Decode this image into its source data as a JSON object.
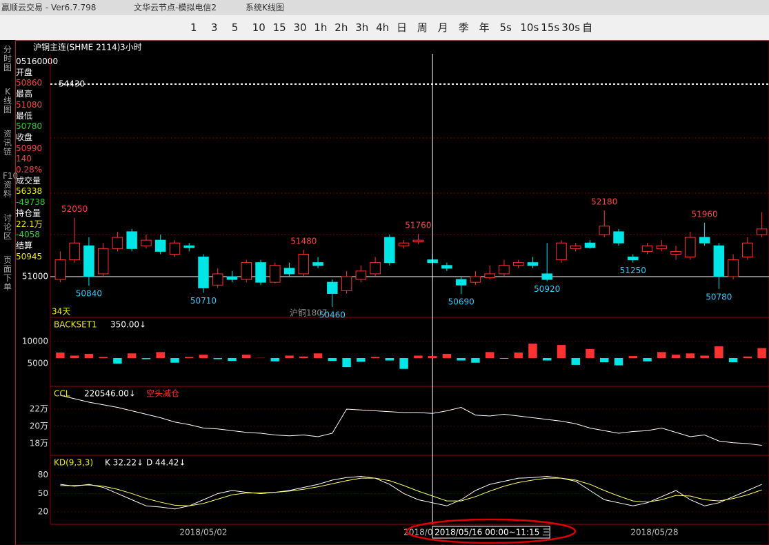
{
  "window": {
    "app": "赢顺云交易 - Ver6.7.798",
    "node": "文华云节点-模拟电信2",
    "view": "系统K线图"
  },
  "toolbar": {
    "periods": [
      "1",
      "3",
      "5",
      "10",
      "15",
      "30",
      "1h",
      "2h",
      "3h",
      "4h",
      "日",
      "周",
      "月",
      "季",
      "年",
      "5s",
      "10s",
      "15s",
      "30s",
      "自"
    ]
  },
  "sidebar": {
    "tabs": [
      "分时图",
      "K线图",
      "资讯链",
      "F10资料",
      "讨论区",
      "页面下单"
    ]
  },
  "header": {
    "symbol": "沪铜主连(SHME 2114)",
    "period": "3小时"
  },
  "info": {
    "time": "05160000",
    "open_label": "开盘",
    "open": 50860,
    "high_label": "最高",
    "high": 51080,
    "low_label": "最低",
    "low": 50780,
    "close_label": "收盘",
    "close": 50990,
    "change": 140,
    "change_pct": "0.28%",
    "volume_label": "成交量",
    "volume": 56338,
    "volume_change": -49738,
    "oi_label": "持仓量",
    "oi": "22.1万",
    "oi_change": -4058,
    "settle_label": "结算",
    "settle": 50945
  },
  "chart_data": [
    {
      "type": "candlestick",
      "ylim": [
        50275,
        54970
      ],
      "yticks": [
        51000,
        54430
      ],
      "grid": true,
      "up_color": "#ff3232",
      "down_color": "#00e5e5",
      "days": "34天",
      "contract": "沪铜1807",
      "xticks": [
        {
          "value": 10,
          "label": "2018/05/02"
        },
        {
          "value": 25,
          "label": "2018/0"
        },
        {
          "value": 41.5,
          "label": "2018/05/28"
        }
      ],
      "crosshair": {
        "value": 26,
        "label": "2018/05/16 00:00~11:15 三"
      },
      "candles": [
        [
          50950,
          51300,
          51450,
          50900
        ],
        [
          51300,
          51600,
          52050,
          51250
        ],
        [
          51550,
          51000,
          51700,
          50840
        ],
        [
          51050,
          51500,
          51600,
          51000
        ],
        [
          51500,
          51700,
          51800,
          51450
        ],
        [
          51800,
          51500,
          51850,
          51450
        ],
        [
          51550,
          51650,
          51750,
          51500
        ],
        [
          51650,
          51450,
          51750,
          51400
        ],
        [
          51400,
          51600,
          51650,
          51350
        ],
        [
          51550,
          51520,
          51600,
          51450
        ],
        [
          51350,
          50800,
          51400,
          50710
        ],
        [
          50850,
          51050,
          51150,
          50800
        ],
        [
          51000,
          50950,
          51100,
          50900
        ],
        [
          50950,
          51250,
          51300,
          50900
        ],
        [
          51250,
          50900,
          51300,
          50850
        ],
        [
          50900,
          51200,
          51250,
          50880
        ],
        [
          51150,
          51050,
          51250,
          51000
        ],
        [
          51050,
          51400,
          51480,
          51000
        ],
        [
          51250,
          51200,
          51350,
          51150
        ],
        [
          50900,
          50700,
          50950,
          50460
        ],
        [
          50750,
          51000,
          51100,
          50700
        ],
        [
          50950,
          51100,
          51200,
          50900
        ],
        [
          51050,
          51250,
          51350,
          51000
        ],
        [
          51700,
          51250,
          51750,
          51200
        ],
        [
          51550,
          51600,
          51650,
          51500
        ],
        [
          51620,
          51650,
          51760,
          51580
        ],
        [
          51300,
          51250,
          51400,
          51200
        ],
        [
          51200,
          51150,
          51250,
          51100
        ],
        [
          50950,
          50850,
          51000,
          50690
        ],
        [
          50900,
          51000,
          51100,
          50850
        ],
        [
          50980,
          51050,
          51200,
          50950
        ],
        [
          51050,
          51200,
          51300,
          51000
        ],
        [
          51200,
          51250,
          51300,
          51150
        ],
        [
          51250,
          51200,
          51350,
          51150
        ],
        [
          51050,
          50950,
          51600,
          50920
        ],
        [
          51300,
          51600,
          51650,
          51250
        ],
        [
          51500,
          51550,
          51600,
          51450
        ],
        [
          51600,
          51520,
          51650,
          51500
        ],
        [
          51750,
          51900,
          52180,
          51700
        ],
        [
          51800,
          51600,
          51850,
          51550
        ],
        [
          51350,
          51300,
          51400,
          51250
        ],
        [
          51450,
          51550,
          51600,
          51400
        ],
        [
          51500,
          51550,
          51650,
          51450
        ],
        [
          51400,
          51450,
          51550,
          51300
        ],
        [
          51350,
          51700,
          51800,
          51300
        ],
        [
          51700,
          51600,
          51960,
          51550
        ],
        [
          51550,
          51000,
          51600,
          50780
        ],
        [
          51000,
          51300,
          51400,
          50950
        ],
        [
          51350,
          51600,
          51700,
          51300
        ],
        [
          51750,
          51850,
          52150,
          51700
        ]
      ],
      "labels": [
        [
          1,
          2
        ],
        [
          2,
          3
        ],
        [
          10,
          3
        ],
        [
          17,
          2
        ],
        [
          19,
          3
        ],
        [
          25,
          2
        ],
        [
          28,
          3
        ],
        [
          34,
          3
        ],
        [
          38,
          2
        ],
        [
          40,
          3
        ],
        [
          45,
          2
        ],
        [
          46,
          3
        ]
      ]
    },
    {
      "type": "bar",
      "name": "BACKSET1",
      "value_text": "350.00↓",
      "ylim": [
        -150,
        15150
      ],
      "baseline": 6250,
      "yticks": [
        5000,
        10000
      ],
      "values": [
        7500,
        6800,
        7200,
        6500,
        5000,
        7300,
        6000,
        7600,
        5200,
        6500,
        7000,
        6000,
        5600,
        7000,
        6300,
        5500,
        6800,
        6600,
        7300,
        5600,
        4200,
        5400,
        6500,
        5700,
        3800,
        6800,
        6700,
        7200,
        5700,
        5200,
        7600,
        6100,
        7500,
        9500,
        5700,
        9200,
        4700,
        8300,
        5300,
        4600,
        6700,
        5500,
        7600,
        7000,
        7300,
        6800,
        8900,
        5300,
        6600,
        8500
      ],
      "up_color": "#ff3232",
      "down_color": "#00e5e5"
    },
    {
      "type": "line",
      "name": "CCL",
      "value_text": "220546.00↓",
      "note": "空头减仓",
      "ylim": [
        166400,
        244800
      ],
      "yticks": [
        {
          "value": 220000,
          "label": "22万"
        },
        {
          "value": 200000,
          "label": "20万"
        },
        {
          "value": 180000,
          "label": "18万"
        }
      ],
      "series": [
        {
          "color": "#ffffff",
          "values": [
            236000,
            232000,
            228000,
            225000,
            222000,
            218000,
            214000,
            210000,
            205000,
            202000,
            198000,
            197000,
            195000,
            193000,
            192000,
            190000,
            189000,
            190000,
            188000,
            192000,
            220000,
            219000,
            218000,
            217000,
            216000,
            216000,
            215000,
            218000,
            222000,
            213000,
            212000,
            214000,
            212000,
            210000,
            208000,
            206000,
            203000,
            198000,
            195000,
            192000,
            194000,
            195000,
            198000,
            193000,
            188000,
            190000,
            183000,
            181000,
            180000,
            178000
          ]
        }
      ]
    },
    {
      "type": "line",
      "name": "KD(9,3,3)",
      "ylim": [
        0,
        110
      ],
      "yticks": [
        20,
        50,
        80
      ],
      "series": [
        {
          "name": "K 32.22↓",
          "color": "#ffffff",
          "values": [
            65,
            62,
            65,
            60,
            50,
            40,
            30,
            28,
            25,
            30,
            40,
            50,
            55,
            52,
            50,
            52,
            55,
            60,
            65,
            72,
            76,
            78,
            75,
            65,
            50,
            40,
            35,
            30,
            40,
            55,
            65,
            70,
            75,
            76,
            78,
            75,
            70,
            55,
            40,
            35,
            30,
            35,
            45,
            55,
            40,
            30,
            35,
            45,
            55,
            65
          ]
        },
        {
          "name": "D 44.42↓",
          "color": "#ffff66",
          "values": [
            63,
            63,
            64,
            62,
            57,
            50,
            42,
            36,
            31,
            30,
            34,
            41,
            48,
            51,
            51,
            52,
            54,
            57,
            61,
            66,
            71,
            75,
            75,
            71,
            63,
            54,
            46,
            38,
            38,
            45,
            54,
            62,
            68,
            72,
            75,
            75,
            72,
            65,
            55,
            46,
            38,
            36,
            40,
            47,
            46,
            40,
            38,
            42,
            48,
            56
          ]
        }
      ]
    }
  ]
}
